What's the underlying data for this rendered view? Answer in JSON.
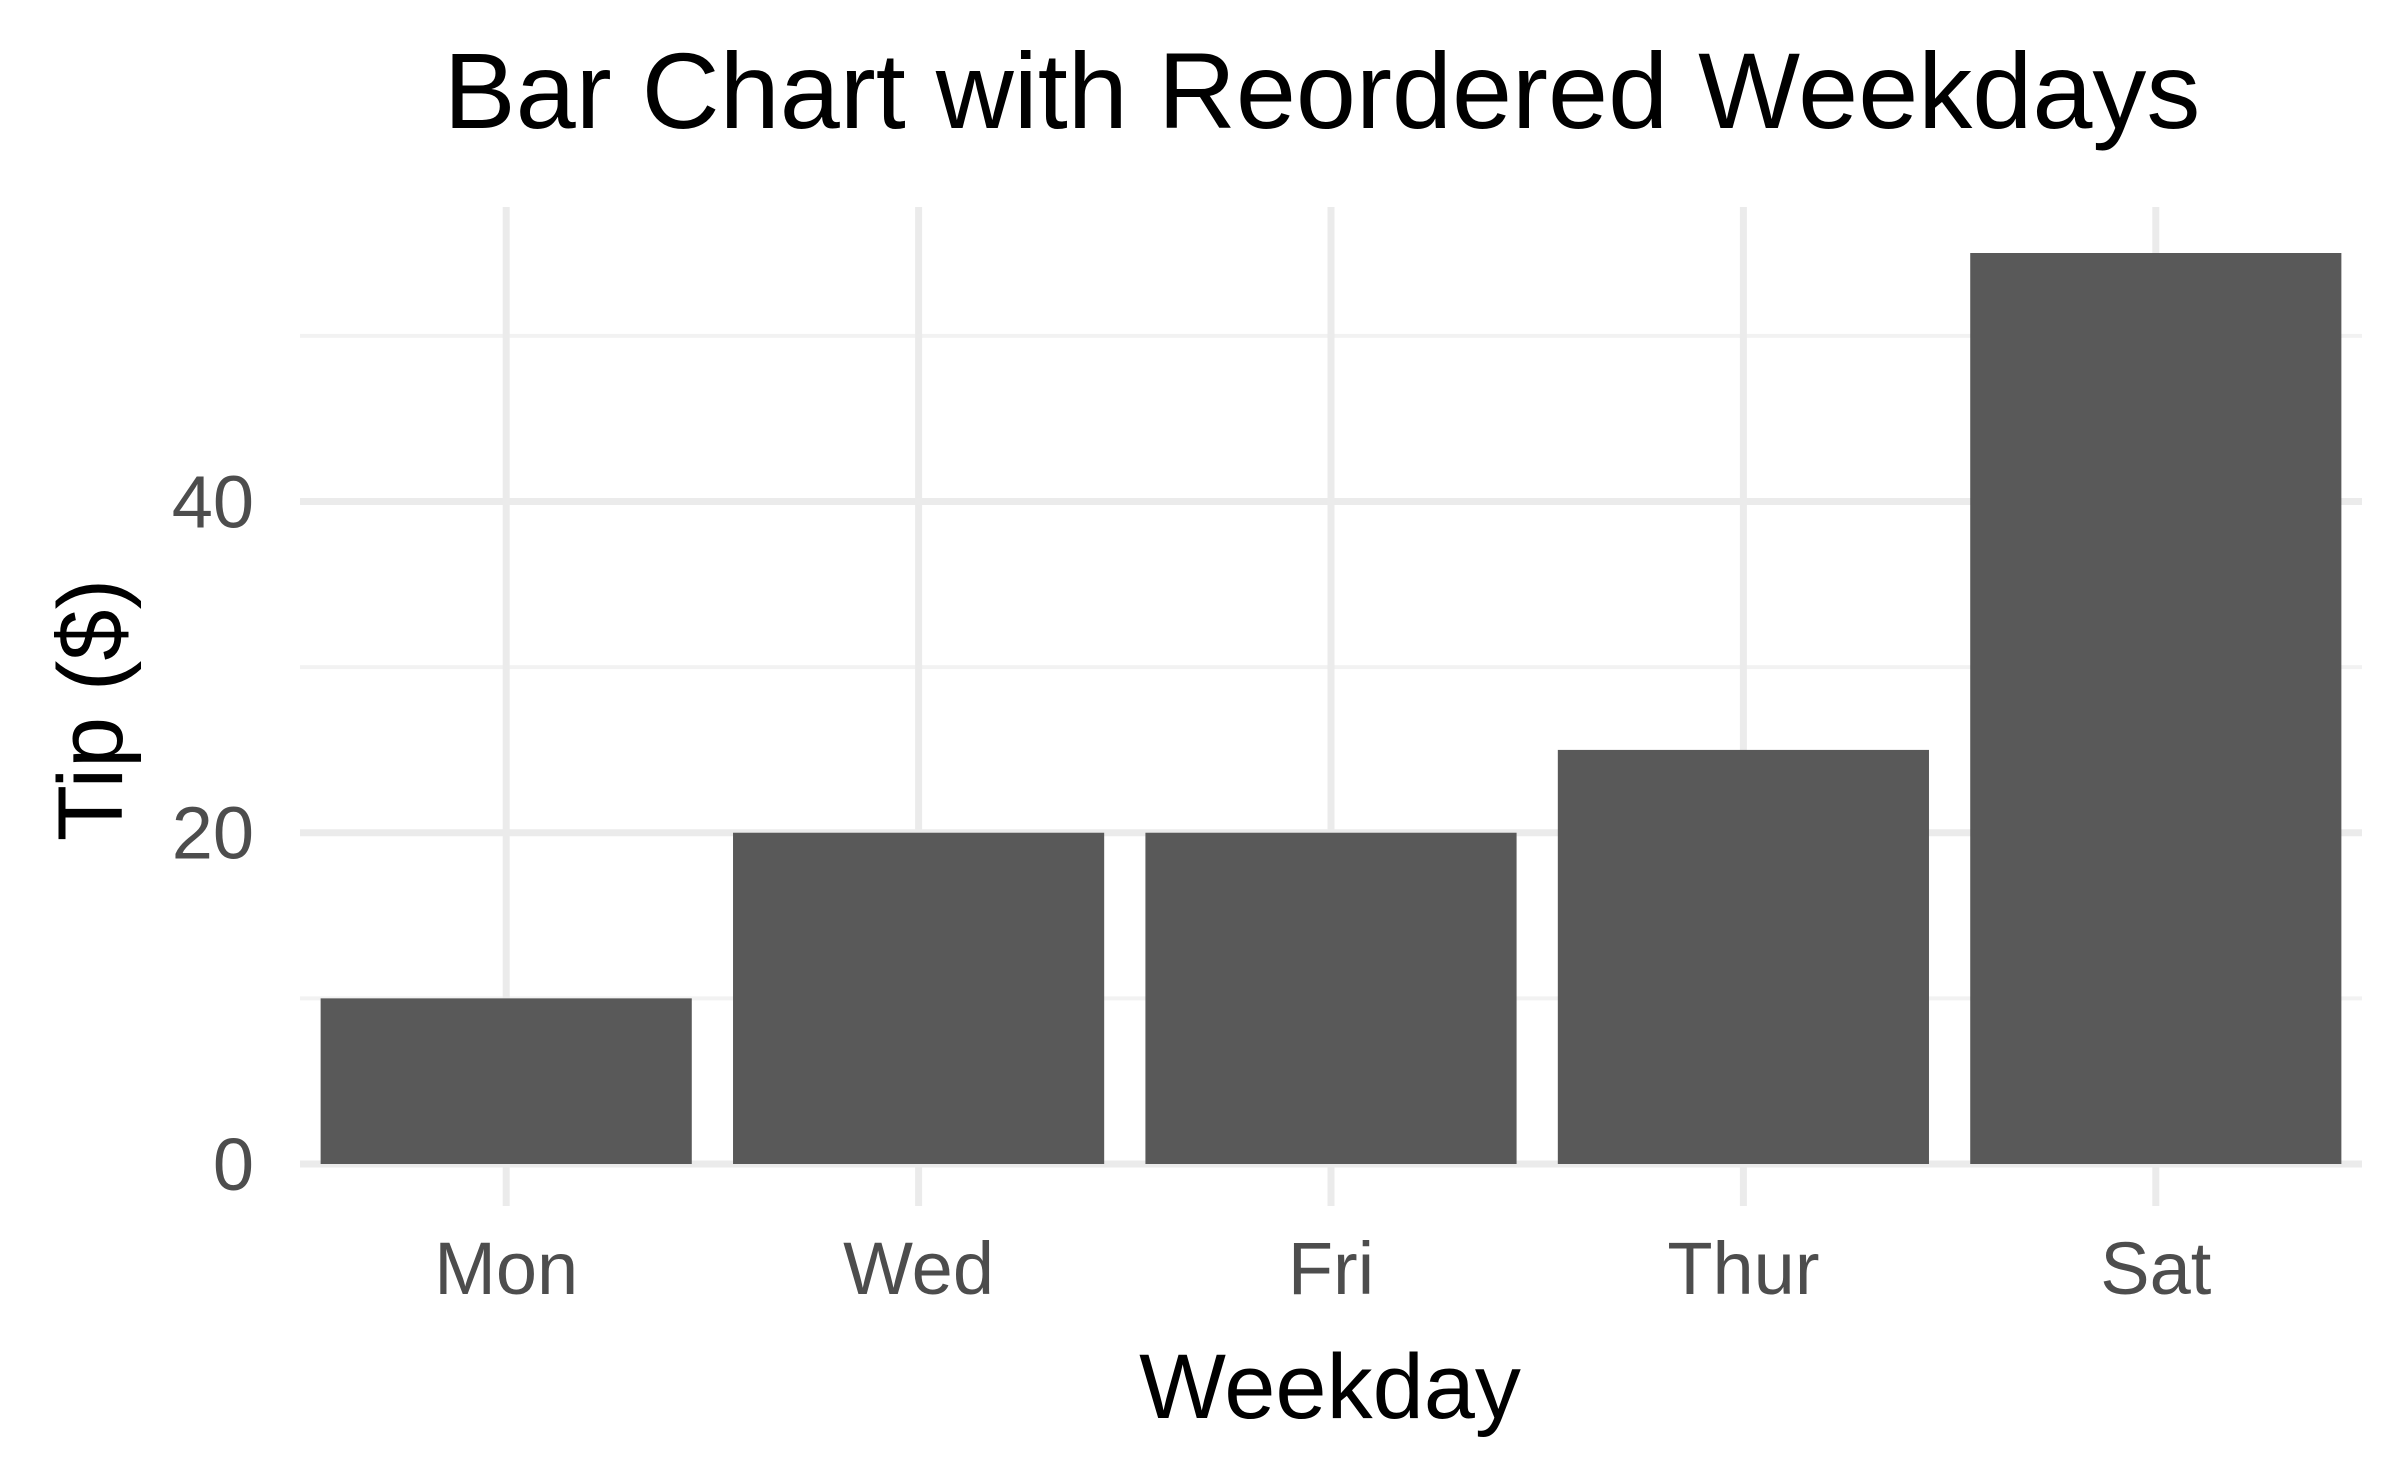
{
  "chart_data": {
    "type": "bar",
    "title": "Bar Chart with Reordered Weekdays",
    "xlabel": "Weekday",
    "ylabel": "Tip ($)",
    "categories": [
      "Mon",
      "Wed",
      "Fri",
      "Thur",
      "Sat"
    ],
    "values": [
      10,
      20,
      20,
      25,
      55
    ],
    "ylim": [
      0,
      57.5
    ],
    "yticks": [
      0,
      20,
      40
    ],
    "y_minor_ticks": [
      10,
      30,
      50
    ],
    "ytick_labels": [
      "0",
      "20",
      "40"
    ],
    "grid": true,
    "legend": "none",
    "colors": {
      "bar": "#595959",
      "grid_major": "#ebebeb",
      "grid_minor": "#f2f2f2",
      "tick_text": "#4d4d4d",
      "title_text": "#000000",
      "background": "#ffffff"
    }
  }
}
